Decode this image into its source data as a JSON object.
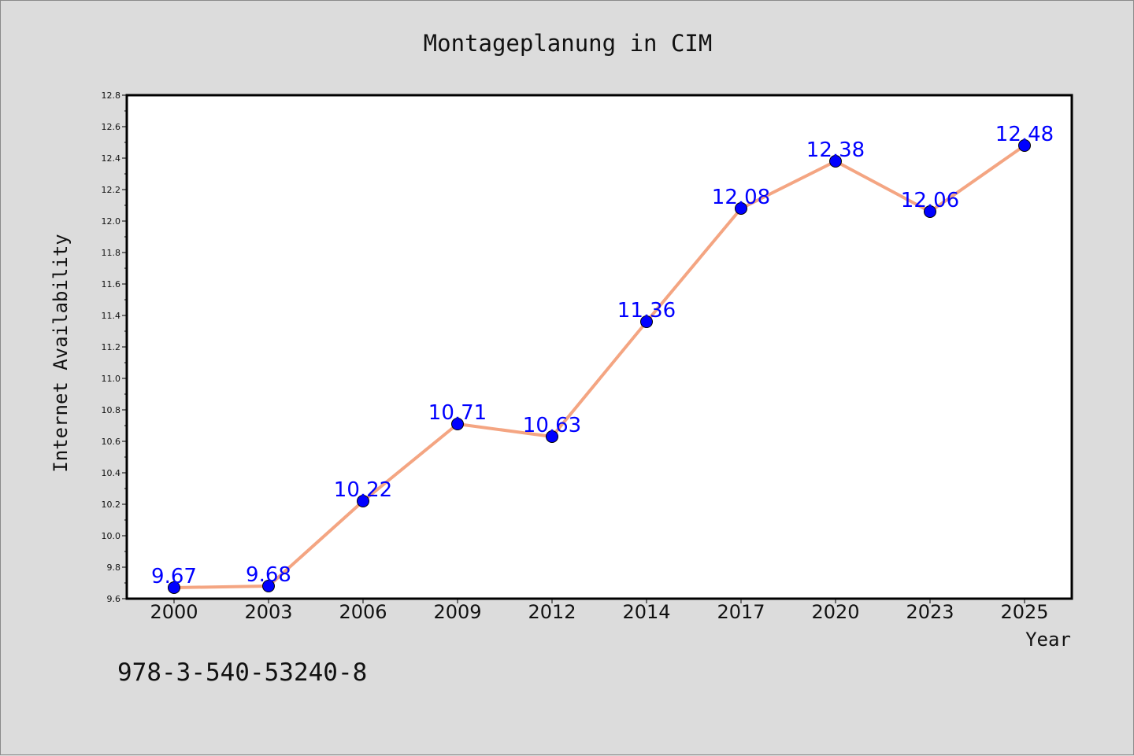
{
  "colors": {
    "background": "#dcdcdc",
    "plot_background": "#ffffff",
    "line": "#f4a582",
    "marker": "#0000ff",
    "label": "#0000ff"
  },
  "footer_text": "978-3-540-53240-8",
  "chart_data": {
    "type": "line",
    "title": "Montageplanung in CIM",
    "xlabel": "Year",
    "ylabel": "Internet Availability",
    "categories": [
      "2000",
      "2003",
      "2006",
      "2009",
      "2012",
      "2014",
      "2017",
      "2020",
      "2023",
      "2025"
    ],
    "series": [
      {
        "values": [
          9.67,
          9.68,
          10.22,
          10.71,
          10.63,
          11.36,
          12.08,
          12.38,
          12.06,
          12.48
        ],
        "labels": [
          "9.67",
          "9.68",
          "10.22",
          "10.71",
          "10.63",
          "11.36",
          "12.08",
          "12.38",
          "12.06",
          "12.48"
        ]
      }
    ],
    "ylim": [
      9.6,
      12.8
    ],
    "yticks": [
      "9.6",
      "9.8",
      "10.0",
      "10.2",
      "10.4",
      "10.6",
      "10.8",
      "11.0",
      "11.2",
      "11.4",
      "11.6",
      "11.8",
      "12.0",
      "12.2",
      "12.4",
      "12.6",
      "12.8"
    ],
    "grid": false,
    "legend": "none"
  }
}
